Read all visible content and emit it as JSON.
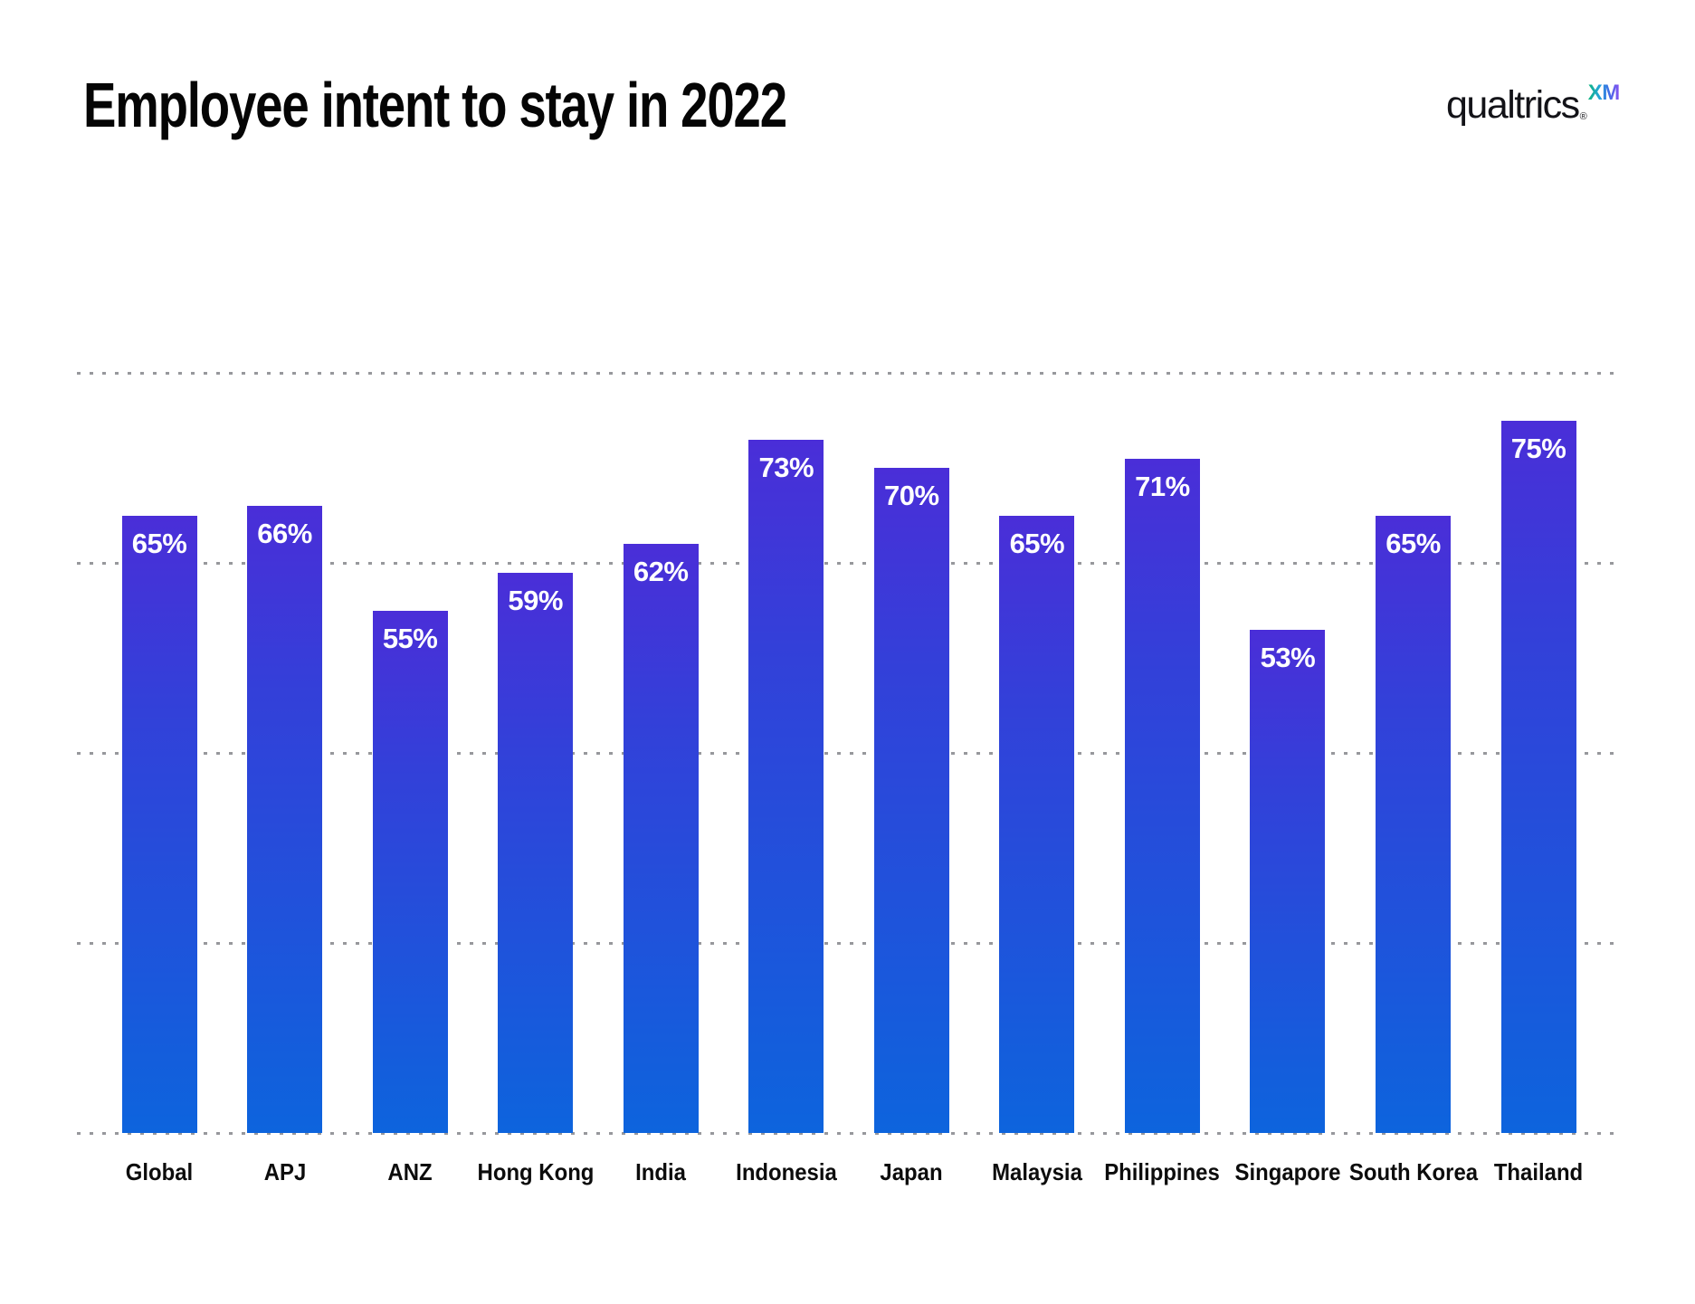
{
  "header": {
    "title": "Employee intent to stay in 2022"
  },
  "logo": {
    "brand": "qualtrics",
    "registered": "®",
    "superscript": "XM"
  },
  "chart_data": {
    "type": "bar",
    "title": "Employee intent to stay in 2022",
    "categories": [
      "Global",
      "APJ",
      "ANZ",
      "Hong Kong",
      "India",
      "Indonesia",
      "Japan",
      "Malaysia",
      "Philippines",
      "Singapore",
      "South Korea",
      "Thailand"
    ],
    "values": [
      65,
      66,
      55,
      59,
      62,
      73,
      70,
      65,
      71,
      53,
      65,
      75
    ],
    "value_labels": [
      "65%",
      "66%",
      "55%",
      "59%",
      "62%",
      "73%",
      "70%",
      "65%",
      "71%",
      "53%",
      "65%",
      "75%"
    ],
    "xlabel": "",
    "ylabel": "",
    "ylim": [
      0,
      80
    ],
    "gridline_values": [
      0,
      20,
      40,
      60,
      80
    ],
    "grid": "dotted horizontal, no tick labels",
    "legend": "none",
    "bar_gradient_top": "#4a2ed8",
    "bar_gradient_bottom": "#0d64dd",
    "value_label_color": "#ffffff",
    "gridline_color": "#97989c"
  }
}
